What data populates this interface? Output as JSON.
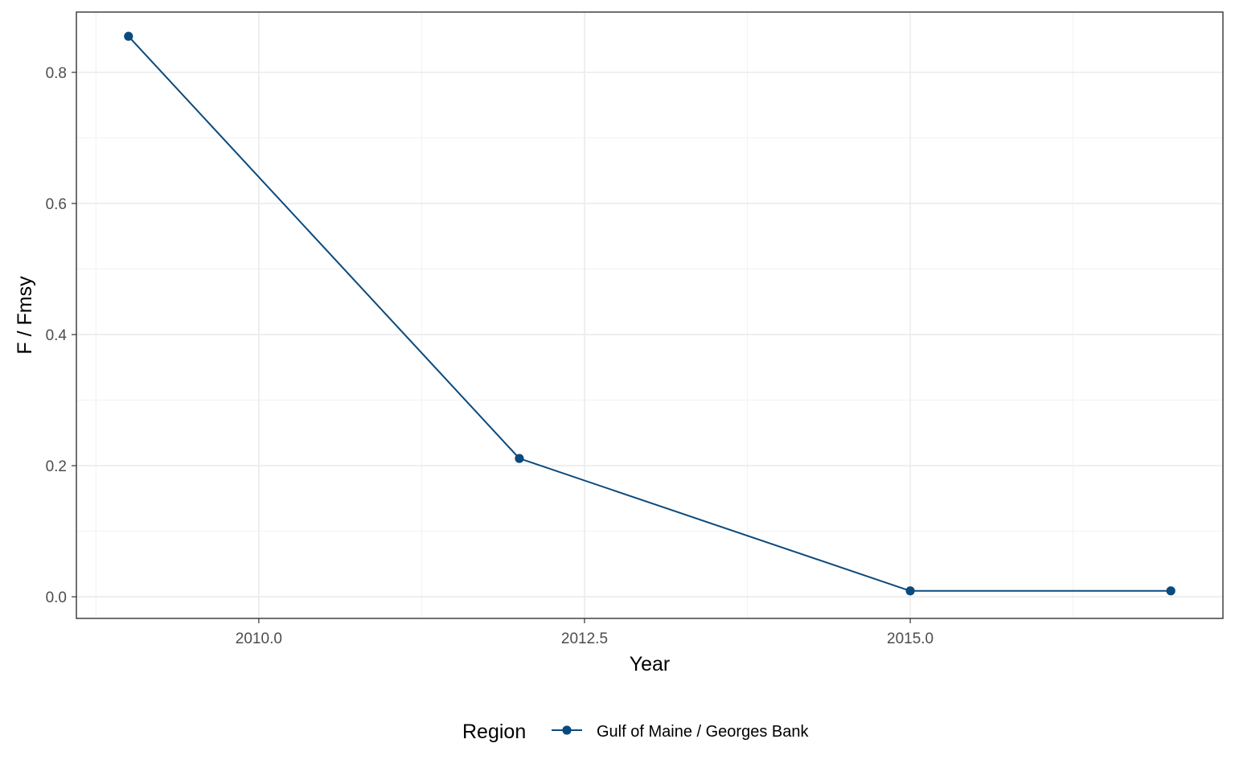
{
  "chart_data": {
    "type": "line",
    "xlabel": "Year",
    "ylabel": "F / Fmsy",
    "xlim": [
      2008.6,
      2017.4
    ],
    "ylim": [
      -0.033,
      0.892
    ],
    "x_ticks": [
      2010.0,
      2012.5,
      2015.0
    ],
    "x_tick_labels": [
      "2010.0",
      "2012.5",
      "2015.0"
    ],
    "x_minor_ticks": [
      2008.75,
      2011.25,
      2013.75,
      2016.25
    ],
    "y_ticks": [
      0.0,
      0.2,
      0.4,
      0.6,
      0.8
    ],
    "y_tick_labels": [
      "0.0",
      "0.2",
      "0.4",
      "0.6",
      "0.8"
    ],
    "y_minor_ticks": [
      0.1,
      0.3,
      0.5,
      0.7
    ],
    "grid": true,
    "legend": {
      "title": "Region",
      "position": "bottom"
    },
    "series": [
      {
        "name": "Gulf of Maine / Georges Bank",
        "color": "#0b4a7d",
        "x": [
          2009,
          2012,
          2015,
          2017
        ],
        "y": [
          0.855,
          0.211,
          0.009,
          0.009
        ]
      }
    ]
  }
}
